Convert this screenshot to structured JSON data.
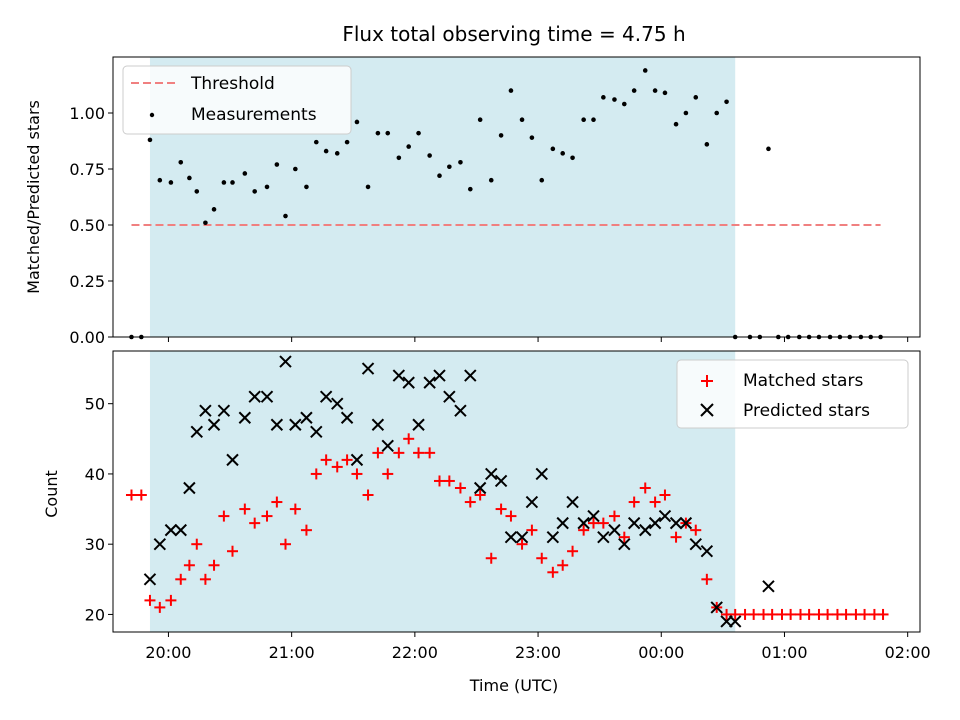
{
  "title": "Flux total observing time = 4.75 h",
  "colors": {
    "band": "#d4ebf1",
    "threshold": "#f08080",
    "matched": "#ff0000",
    "predicted": "#000000",
    "measurement": "#000000"
  },
  "x_ticks": [
    {
      "x": 20.0,
      "label": "20:00"
    },
    {
      "x": 21.0,
      "label": "21:00"
    },
    {
      "x": 22.0,
      "label": "22:00"
    },
    {
      "x": 23.0,
      "label": "23:00"
    },
    {
      "x": 24.0,
      "label": "00:00"
    },
    {
      "x": 25.0,
      "label": "01:00"
    },
    {
      "x": 26.0,
      "label": "02:00"
    }
  ],
  "chart_data": [
    {
      "type": "scatter",
      "panel": "top",
      "xlabel": "",
      "ylabel": "Matched/Predicted stars",
      "xlim": [
        19.55,
        26.1
      ],
      "ylim": [
        0,
        1.25
      ],
      "y_ticks": [
        {
          "v": 0.0,
          "label": "0.00"
        },
        {
          "v": 0.25,
          "label": "0.25"
        },
        {
          "v": 0.5,
          "label": "0.50"
        },
        {
          "v": 0.75,
          "label": "0.75"
        },
        {
          "v": 1.0,
          "label": "1.00"
        }
      ],
      "observing_band": [
        19.85,
        24.6
      ],
      "legend": {
        "placement": "upper-left",
        "entries": [
          "Threshold",
          "Measurements"
        ]
      },
      "series": [
        {
          "name": "Threshold",
          "style": "dashed-line",
          "x": [
            19.7,
            25.78
          ],
          "y": [
            0.5,
            0.5
          ]
        },
        {
          "name": "Measurements",
          "style": "dot",
          "x": [
            19.7,
            19.78,
            19.85,
            19.93,
            20.02,
            20.1,
            20.17,
            20.23,
            20.3,
            20.37,
            20.45,
            20.52,
            20.62,
            20.7,
            20.8,
            20.88,
            20.95,
            21.03,
            21.12,
            21.2,
            21.28,
            21.37,
            21.45,
            21.53,
            21.62,
            21.7,
            21.78,
            21.87,
            21.95,
            22.03,
            22.12,
            22.2,
            22.28,
            22.37,
            22.45,
            22.53,
            22.62,
            22.7,
            22.78,
            22.87,
            22.95,
            23.03,
            23.12,
            23.2,
            23.28,
            23.37,
            23.45,
            23.53,
            23.62,
            23.7,
            23.78,
            23.87,
            23.95,
            24.03,
            24.12,
            24.2,
            24.28,
            24.37,
            24.45,
            24.53,
            24.6,
            24.72,
            24.8,
            24.87,
            24.95,
            25.03,
            25.12,
            25.2,
            25.28,
            25.37,
            25.45,
            25.53,
            25.62,
            25.7,
            25.78
          ],
          "y": [
            0.0,
            0.0,
            0.88,
            0.7,
            0.69,
            0.78,
            0.71,
            0.65,
            0.51,
            0.57,
            0.69,
            0.69,
            0.73,
            0.65,
            0.67,
            0.77,
            0.54,
            0.75,
            0.67,
            0.87,
            0.83,
            0.82,
            0.87,
            0.96,
            0.67,
            0.91,
            0.91,
            0.8,
            0.85,
            0.91,
            0.81,
            0.72,
            0.76,
            0.78,
            0.66,
            0.97,
            0.7,
            0.9,
            1.1,
            0.97,
            0.89,
            0.7,
            0.84,
            0.82,
            0.8,
            0.97,
            0.97,
            1.07,
            1.06,
            1.04,
            1.1,
            1.19,
            1.1,
            1.09,
            0.95,
            1.0,
            1.07,
            0.86,
            1.0,
            1.05,
            0.0,
            0.0,
            0.0,
            0.84,
            0.0,
            0.0,
            0.0,
            0.0,
            0.0,
            0.0,
            0.0,
            0.0,
            0.0,
            0.0,
            0.0
          ]
        }
      ]
    },
    {
      "type": "scatter",
      "panel": "bottom",
      "xlabel": "Time (UTC)",
      "ylabel": "Count",
      "xlim": [
        19.55,
        26.1
      ],
      "ylim": [
        17.5,
        57.5
      ],
      "y_ticks": [
        {
          "v": 20,
          "label": "20"
        },
        {
          "v": 30,
          "label": "30"
        },
        {
          "v": 40,
          "label": "40"
        },
        {
          "v": 50,
          "label": "50"
        }
      ],
      "observing_band": [
        19.85,
        24.6
      ],
      "legend": {
        "placement": "upper-right",
        "entries": [
          "Matched stars",
          "Predicted stars"
        ]
      },
      "series": [
        {
          "name": "Matched stars",
          "style": "plus",
          "x": [
            19.7,
            19.78,
            19.85,
            19.93,
            20.02,
            20.1,
            20.17,
            20.23,
            20.3,
            20.37,
            20.45,
            20.52,
            20.62,
            20.7,
            20.8,
            20.88,
            20.95,
            21.03,
            21.12,
            21.2,
            21.28,
            21.37,
            21.45,
            21.53,
            21.62,
            21.7,
            21.78,
            21.87,
            21.95,
            22.03,
            22.12,
            22.2,
            22.28,
            22.37,
            22.45,
            22.53,
            22.62,
            22.7,
            22.78,
            22.87,
            22.95,
            23.03,
            23.12,
            23.2,
            23.28,
            23.37,
            23.45,
            23.53,
            23.62,
            23.7,
            23.78,
            23.87,
            23.95,
            24.03,
            24.12,
            24.2,
            24.28,
            24.37,
            24.45,
            24.53,
            24.6,
            24.68,
            24.75,
            24.83,
            24.9,
            24.98,
            25.05,
            25.13,
            25.2,
            25.28,
            25.35,
            25.43,
            25.5,
            25.58,
            25.65,
            25.73,
            25.8
          ],
          "y": [
            37,
            37,
            22,
            21,
            22,
            25,
            27,
            30,
            25,
            27,
            34,
            29,
            35,
            33,
            34,
            36,
            30,
            35,
            32,
            40,
            42,
            41,
            42,
            40,
            37,
            43,
            40,
            43,
            45,
            43,
            43,
            39,
            39,
            38,
            36,
            37,
            28,
            35,
            34,
            30,
            32,
            28,
            26,
            27,
            29,
            32,
            33,
            33,
            34,
            31,
            36,
            38,
            36,
            37,
            31,
            33,
            32,
            25,
            21,
            20,
            20,
            20,
            20,
            20,
            20,
            20,
            20,
            20,
            20,
            20,
            20,
            20,
            20,
            20,
            20,
            20,
            20
          ]
        },
        {
          "name": "Predicted stars",
          "style": "cross",
          "x": [
            19.85,
            19.93,
            20.02,
            20.1,
            20.17,
            20.23,
            20.3,
            20.37,
            20.45,
            20.52,
            20.62,
            20.7,
            20.8,
            20.88,
            20.95,
            21.03,
            21.12,
            21.2,
            21.28,
            21.37,
            21.45,
            21.53,
            21.62,
            21.7,
            21.78,
            21.87,
            21.95,
            22.03,
            22.12,
            22.2,
            22.28,
            22.37,
            22.45,
            22.53,
            22.62,
            22.7,
            22.78,
            22.87,
            22.95,
            23.03,
            23.12,
            23.2,
            23.28,
            23.37,
            23.45,
            23.53,
            23.62,
            23.7,
            23.78,
            23.87,
            23.95,
            24.03,
            24.12,
            24.2,
            24.28,
            24.37,
            24.45,
            24.53,
            24.6,
            24.87
          ],
          "y": [
            25,
            30,
            32,
            32,
            38,
            46,
            49,
            47,
            49,
            42,
            48,
            51,
            51,
            47,
            56,
            47,
            48,
            46,
            51,
            50,
            48,
            42,
            55,
            47,
            44,
            54,
            53,
            47,
            53,
            54,
            51,
            49,
            54,
            38,
            40,
            39,
            31,
            31,
            36,
            40,
            31,
            33,
            36,
            33,
            34,
            31,
            32,
            30,
            33,
            32,
            33,
            34,
            33,
            33,
            30,
            29,
            21,
            19,
            19,
            24
          ]
        }
      ]
    }
  ]
}
